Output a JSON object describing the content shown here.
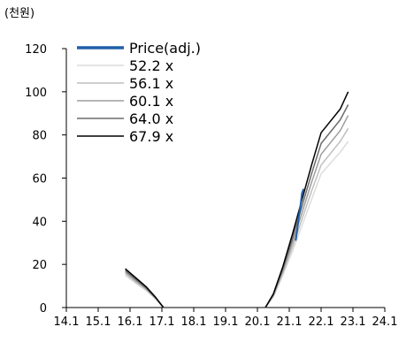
{
  "chart_data": {
    "type": "line",
    "unit_label": "(천원)",
    "x_ticks": [
      "14.1",
      "15.1",
      "16.1",
      "17.1",
      "18.1",
      "19.1",
      "20.1",
      "21.1",
      "22.1",
      "23.1",
      "24.1"
    ],
    "y_ticks": [
      "0",
      "20",
      "40",
      "60",
      "80",
      "100",
      "120"
    ],
    "xlim": [
      2014.0,
      2024.0
    ],
    "ylim": [
      0,
      120
    ],
    "grid": false,
    "legend_position": "top-left",
    "series": [
      {
        "name": "Price(adj.)",
        "color": "#1f5fa8",
        "x": [
          2021.2,
          2021.25,
          2021.3,
          2021.35,
          2021.4,
          2021.45
        ],
        "y": [
          31,
          36,
          42,
          47,
          53,
          55
        ]
      },
      {
        "name": "52.2 x",
        "color": "#dcdcdc",
        "x": [
          2015.85,
          2016.2,
          2016.5,
          2016.8,
          2017.05,
          2020.25,
          2020.5,
          2020.8,
          2021.1,
          2021.4,
          2021.7,
          2022.0,
          2022.3,
          2022.6,
          2022.85
        ],
        "y": [
          15,
          11,
          8,
          4,
          0,
          0,
          5,
          15,
          26,
          38,
          50,
          62,
          67,
          72,
          77
        ]
      },
      {
        "name": "56.1 x",
        "color": "#bfbfbf",
        "x": [
          2015.85,
          2016.2,
          2016.5,
          2016.8,
          2017.05,
          2020.25,
          2020.5,
          2020.8,
          2021.1,
          2021.4,
          2021.7,
          2022.0,
          2022.3,
          2022.6,
          2022.85
        ],
        "y": [
          15.8,
          11.6,
          8.4,
          4.2,
          0,
          0,
          5.3,
          16,
          28,
          41,
          54,
          66,
          71.5,
          77,
          83
        ]
      },
      {
        "name": "60.1 x",
        "color": "#9e9e9e",
        "x": [
          2015.85,
          2016.2,
          2016.5,
          2016.8,
          2017.05,
          2020.25,
          2020.5,
          2020.8,
          2021.1,
          2021.4,
          2021.7,
          2022.0,
          2022.3,
          2022.6,
          2022.85
        ],
        "y": [
          16.5,
          12.2,
          8.8,
          4.4,
          0,
          0,
          5.6,
          17,
          30,
          44,
          58,
          71,
          76.5,
          82,
          89
        ]
      },
      {
        "name": "64.0 x",
        "color": "#6b6b6b",
        "x": [
          2015.85,
          2016.2,
          2016.5,
          2016.8,
          2017.05,
          2020.25,
          2020.5,
          2020.8,
          2021.1,
          2021.4,
          2021.7,
          2022.0,
          2022.3,
          2022.6,
          2022.85
        ],
        "y": [
          17.2,
          12.8,
          9.2,
          4.6,
          0,
          0,
          6,
          18,
          32,
          47,
          62,
          76,
          81.5,
          87,
          94
        ]
      },
      {
        "name": "67.9 x",
        "color": "#000000",
        "x": [
          2015.85,
          2016.2,
          2016.5,
          2016.8,
          2017.05,
          2020.25,
          2020.5,
          2020.8,
          2021.1,
          2021.4,
          2021.7,
          2022.0,
          2022.3,
          2022.6,
          2022.85
        ],
        "y": [
          18,
          13.5,
          9.7,
          4.8,
          0,
          0,
          6.3,
          19,
          34,
          50,
          66,
          81,
          86.5,
          92,
          100
        ]
      }
    ]
  }
}
